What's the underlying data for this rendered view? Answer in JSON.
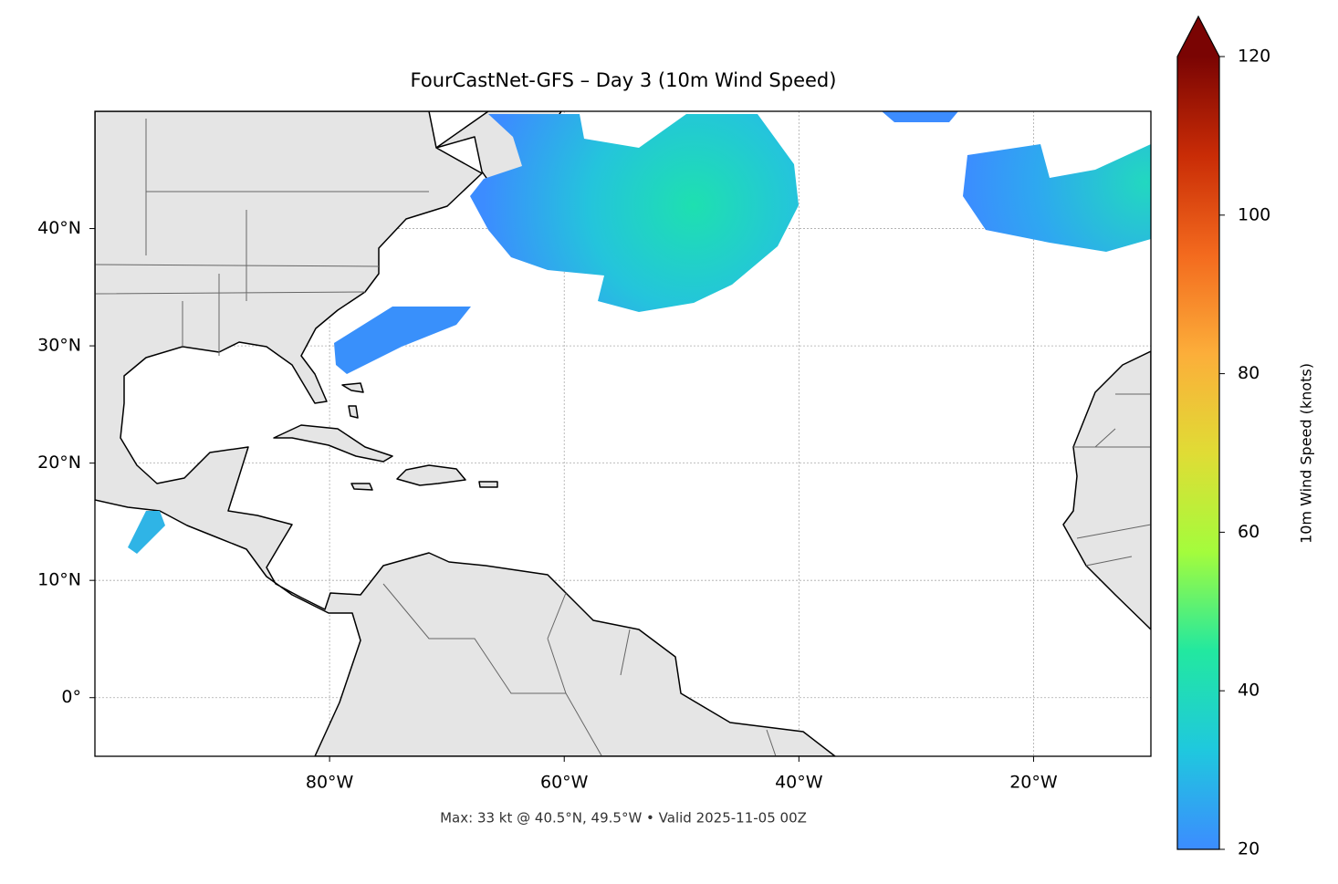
{
  "chart_data": {
    "type": "map",
    "title": "FourCastNet-GFS – Day 3 (10m Wind Speed)",
    "annotation": "Max: 33 kt @ 40.5°N, 49.5°W • Valid 2025-11-05 00Z",
    "xlim": [
      -100,
      -10
    ],
    "ylim": [
      -5,
      50
    ],
    "xticks": [
      {
        "value": -80,
        "label": "80°W"
      },
      {
        "value": -60,
        "label": "60°W"
      },
      {
        "value": -40,
        "label": "40°W"
      },
      {
        "value": -20,
        "label": "20°W"
      }
    ],
    "yticks": [
      {
        "value": 0,
        "label": "0°"
      },
      {
        "value": 10,
        "label": "10°N"
      },
      {
        "value": 20,
        "label": "20°N"
      },
      {
        "value": 30,
        "label": "30°N"
      },
      {
        "value": 40,
        "label": "40°N"
      }
    ],
    "grid": true,
    "colorbar": {
      "label": "10m Wind Speed (knots)",
      "lim": [
        20,
        120
      ],
      "ticks": [
        20,
        40,
        60,
        80,
        100,
        120
      ],
      "colormap": "turbo",
      "extend": "max"
    }
  }
}
